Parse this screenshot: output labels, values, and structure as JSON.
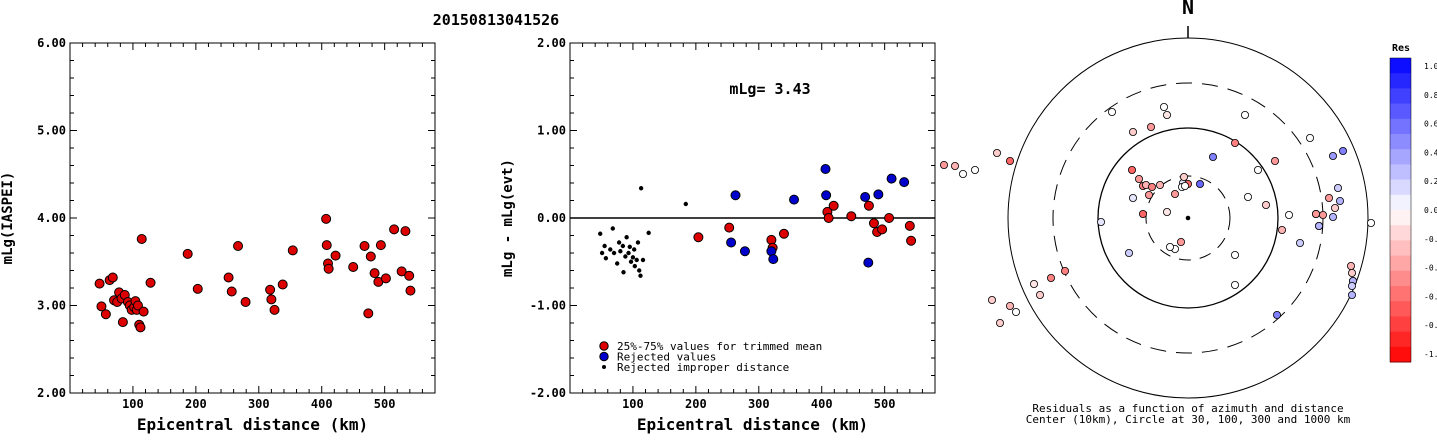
{
  "title": "20150813041526",
  "chart_data": [
    {
      "type": "scatter",
      "xlabel": "Epicentral distance (km)",
      "ylabel": "mLg(IASPEI)",
      "xlim": [
        0,
        580
      ],
      "ylim": [
        2.0,
        6.0
      ],
      "x_ticks": [
        "100",
        "200",
        "300",
        "400",
        "500"
      ],
      "y_ticks": [
        "2.00",
        "3.00",
        "4.00",
        "5.00",
        "6.00"
      ],
      "series": [
        {
          "color": "#dd0000",
          "points": [
            [
              47,
              3.25
            ],
            [
              50,
              2.99
            ],
            [
              57,
              2.9
            ],
            [
              63,
              3.29
            ],
            [
              68,
              3.32
            ],
            [
              70,
              3.06
            ],
            [
              75,
              3.04
            ],
            [
              78,
              3.15
            ],
            [
              82,
              3.08
            ],
            [
              84,
              2.81
            ],
            [
              87,
              3.12
            ],
            [
              92,
              3.04
            ],
            [
              95,
              3.0
            ],
            [
              98,
              2.95
            ],
            [
              102,
              2.98
            ],
            [
              104,
              3.05
            ],
            [
              106,
              2.95
            ],
            [
              108,
              3.0
            ],
            [
              110,
              2.78
            ],
            [
              112,
              2.75
            ],
            [
              114,
              3.76
            ],
            [
              117,
              2.93
            ],
            [
              128,
              3.26
            ],
            [
              187,
              3.59
            ],
            [
              203,
              3.19
            ],
            [
              252,
              3.32
            ],
            [
              257,
              3.16
            ],
            [
              267,
              3.68
            ],
            [
              279,
              3.04
            ],
            [
              318,
              3.18
            ],
            [
              320,
              3.07
            ],
            [
              325,
              2.95
            ],
            [
              338,
              3.24
            ],
            [
              354,
              3.63
            ],
            [
              407,
              3.99
            ],
            [
              408,
              3.69
            ],
            [
              410,
              3.48
            ],
            [
              411,
              3.42
            ],
            [
              422,
              3.57
            ],
            [
              450,
              3.44
            ],
            [
              468,
              3.68
            ],
            [
              474,
              2.91
            ],
            [
              478,
              3.56
            ],
            [
              484,
              3.37
            ],
            [
              490,
              3.27
            ],
            [
              494,
              3.69
            ],
            [
              502,
              3.31
            ],
            [
              515,
              3.87
            ],
            [
              527,
              3.39
            ],
            [
              533,
              3.85
            ],
            [
              539,
              3.34
            ],
            [
              541,
              3.17
            ]
          ]
        }
      ]
    },
    {
      "type": "scatter",
      "xlabel": "Epicentral distance (km)",
      "ylabel": "mLg - mLg(evt)",
      "xlim": [
        0,
        580
      ],
      "ylim": [
        -2.0,
        2.0
      ],
      "x_ticks": [
        "100",
        "200",
        "300",
        "400",
        "500"
      ],
      "y_ticks": [
        "-2.00",
        "-1.00",
        "0.00",
        "1.00",
        "2.00"
      ],
      "annotation": "mLg= 3.43",
      "reference_line": 0.0,
      "legend": [
        "25%-75% values for trimmed mean",
        "Rejected values",
        "Rejected improper distance"
      ],
      "legend_position": "bottom-left",
      "series": [
        {
          "name": "25%-75% values for trimmed mean",
          "color": "#dd0000",
          "points": [
            [
              204,
              -0.22
            ],
            [
              253,
              -0.11
            ],
            [
              320,
              -0.25
            ],
            [
              322,
              -0.34
            ],
            [
              340,
              -0.18
            ],
            [
              409,
              0.07
            ],
            [
              411,
              0.0
            ],
            [
              419,
              0.14
            ],
            [
              447,
              0.02
            ],
            [
              475,
              0.14
            ],
            [
              483,
              -0.06
            ],
            [
              488,
              -0.16
            ],
            [
              496,
              -0.13
            ],
            [
              507,
              0.0
            ],
            [
              540,
              -0.09
            ],
            [
              542,
              -0.26
            ]
          ]
        },
        {
          "name": "Rejected values",
          "color": "#0000cc",
          "points": [
            [
              256,
              -0.28
            ],
            [
              263,
              0.26
            ],
            [
              278,
              -0.38
            ],
            [
              320,
              -0.38
            ],
            [
              323,
              -0.47
            ],
            [
              356,
              0.21
            ],
            [
              406,
              0.56
            ],
            [
              407,
              0.26
            ],
            [
              469,
              0.24
            ],
            [
              474,
              -0.51
            ],
            [
              490,
              0.27
            ],
            [
              511,
              0.45
            ],
            [
              531,
              0.41
            ]
          ]
        },
        {
          "name": "Rejected improper distance",
          "color": "#000000",
          "points": [
            [
              48,
              -0.18
            ],
            [
              51,
              -0.4
            ],
            [
              55,
              -0.32
            ],
            [
              57,
              -0.46
            ],
            [
              64,
              -0.36
            ],
            [
              68,
              -0.12
            ],
            [
              70,
              -0.4
            ],
            [
              75,
              -0.52
            ],
            [
              78,
              -0.28
            ],
            [
              80,
              -0.38
            ],
            [
              84,
              -0.32
            ],
            [
              85,
              -0.62
            ],
            [
              88,
              -0.44
            ],
            [
              90,
              -0.22
            ],
            [
              93,
              -0.4
            ],
            [
              95,
              -0.33
            ],
            [
              97,
              -0.5
            ],
            [
              100,
              -0.45
            ],
            [
              102,
              -0.36
            ],
            [
              103,
              -0.55
            ],
            [
              106,
              -0.48
            ],
            [
              108,
              -0.28
            ],
            [
              110,
              -0.6
            ],
            [
              112,
              -0.66
            ],
            [
              113,
              0.34
            ],
            [
              116,
              -0.48
            ],
            [
              125,
              -0.17
            ],
            [
              184,
              0.16
            ]
          ]
        }
      ]
    },
    {
      "type": "polar-scatter",
      "north_label": "N",
      "caption": "Residuals as a function of azimuth and distance",
      "subcaption": "Center (10km), Circle at 30, 100, 300 and 1000 km",
      "colorbar_title": "Res",
      "colorbar_ticks": [
        "1.0",
        "0.8",
        "0.6",
        "0.4",
        "0.2",
        "0.0",
        "-0.2",
        "-0.4",
        "-0.6",
        "-0.8",
        "-1.0"
      ],
      "points": [
        [
          -76,
          -106,
          0.0
        ],
        [
          -55,
          -86,
          -0.2
        ],
        [
          -37,
          -91,
          -0.4
        ],
        [
          -56,
          -48,
          -0.6
        ],
        [
          -49,
          -39,
          -0.4
        ],
        [
          -45,
          -32,
          -0.5
        ],
        [
          -42,
          -33,
          -0.3
        ],
        [
          -36,
          -31,
          -0.5
        ],
        [
          -39,
          -23,
          -0.4
        ],
        [
          -28,
          -33,
          -0.3
        ],
        [
          -21,
          -6,
          -0.1
        ],
        [
          -13,
          -24,
          -0.4
        ],
        [
          -45,
          -4,
          -0.6
        ],
        [
          -59,
          35,
          0.2
        ],
        [
          -5,
          -35,
          0.1
        ],
        [
          -55,
          -20,
          0.1
        ],
        [
          12,
          -34,
          0.6
        ],
        [
          25,
          -61,
          0.5
        ],
        [
          47,
          -75,
          -0.5
        ],
        [
          57,
          -103,
          0.0
        ],
        [
          78,
          -13,
          -0.2
        ],
        [
          87,
          -57,
          -0.4
        ],
        [
          60,
          -21,
          0.0
        ],
        [
          70,
          -48,
          0.0
        ],
        [
          101,
          -3,
          0.0
        ],
        [
          122,
          -80,
          0.0
        ],
        [
          152,
          -17,
          0.3
        ],
        [
          145,
          -62,
          0.4
        ],
        [
          155,
          -67,
          0.5
        ],
        [
          128,
          -4,
          -0.4
        ],
        [
          128,
          -4,
          -0.4
        ],
        [
          135,
          -3,
          -0.4
        ],
        [
          131,
          8,
          0.3
        ],
        [
          131,
          8,
          0.3
        ],
        [
          112,
          25,
          0.2
        ],
        [
          94,
          12,
          -0.3
        ],
        [
          141,
          -20,
          -0.4
        ],
        [
          150,
          -30,
          0.2
        ],
        [
          147,
          -10,
          -0.2
        ],
        [
          145,
          -1,
          0.3
        ],
        [
          183,
          5,
          0.0
        ],
        [
          163,
          48,
          -0.3
        ],
        [
          164,
          55,
          -0.2
        ],
        [
          165,
          63,
          0.3
        ],
        [
          165,
          63,
          0.3
        ],
        [
          164,
          68,
          0.2
        ],
        [
          164,
          77,
          0.3
        ],
        [
          -123,
          53,
          -0.5
        ],
        [
          -137,
          60,
          -0.5
        ],
        [
          -148,
          77,
          -0.2
        ],
        [
          -172,
          94,
          0.0
        ],
        [
          -154,
          66,
          -0.1
        ],
        [
          -178,
          88,
          -0.3
        ],
        [
          -188,
          105,
          -0.2
        ],
        [
          -196,
          82,
          -0.2
        ],
        [
          -178,
          -57,
          -0.6
        ],
        [
          -191,
          -65,
          -0.2
        ],
        [
          -213,
          -48,
          0.0
        ],
        [
          -233,
          -52,
          -0.3
        ],
        [
          -225,
          -44,
          0.0
        ],
        [
          -244,
          -53,
          -0.4
        ],
        [
          0,
          -34,
          -0.6
        ],
        [
          -7,
          24,
          -0.4
        ],
        [
          -6,
          -31,
          0.0
        ],
        [
          -3,
          -32,
          0.0
        ],
        [
          -13,
          31,
          0.0
        ],
        [
          -18,
          29,
          0.0
        ],
        [
          47,
          37,
          0.0
        ],
        [
          47,
          67,
          0.0
        ],
        [
          89,
          97,
          0.5
        ],
        [
          -24,
          -111,
          0.0
        ],
        [
          -87,
          4,
          0.1
        ],
        [
          -21,
          -103,
          -0.1
        ],
        [
          -4,
          -41,
          -0.2
        ]
      ]
    }
  ]
}
